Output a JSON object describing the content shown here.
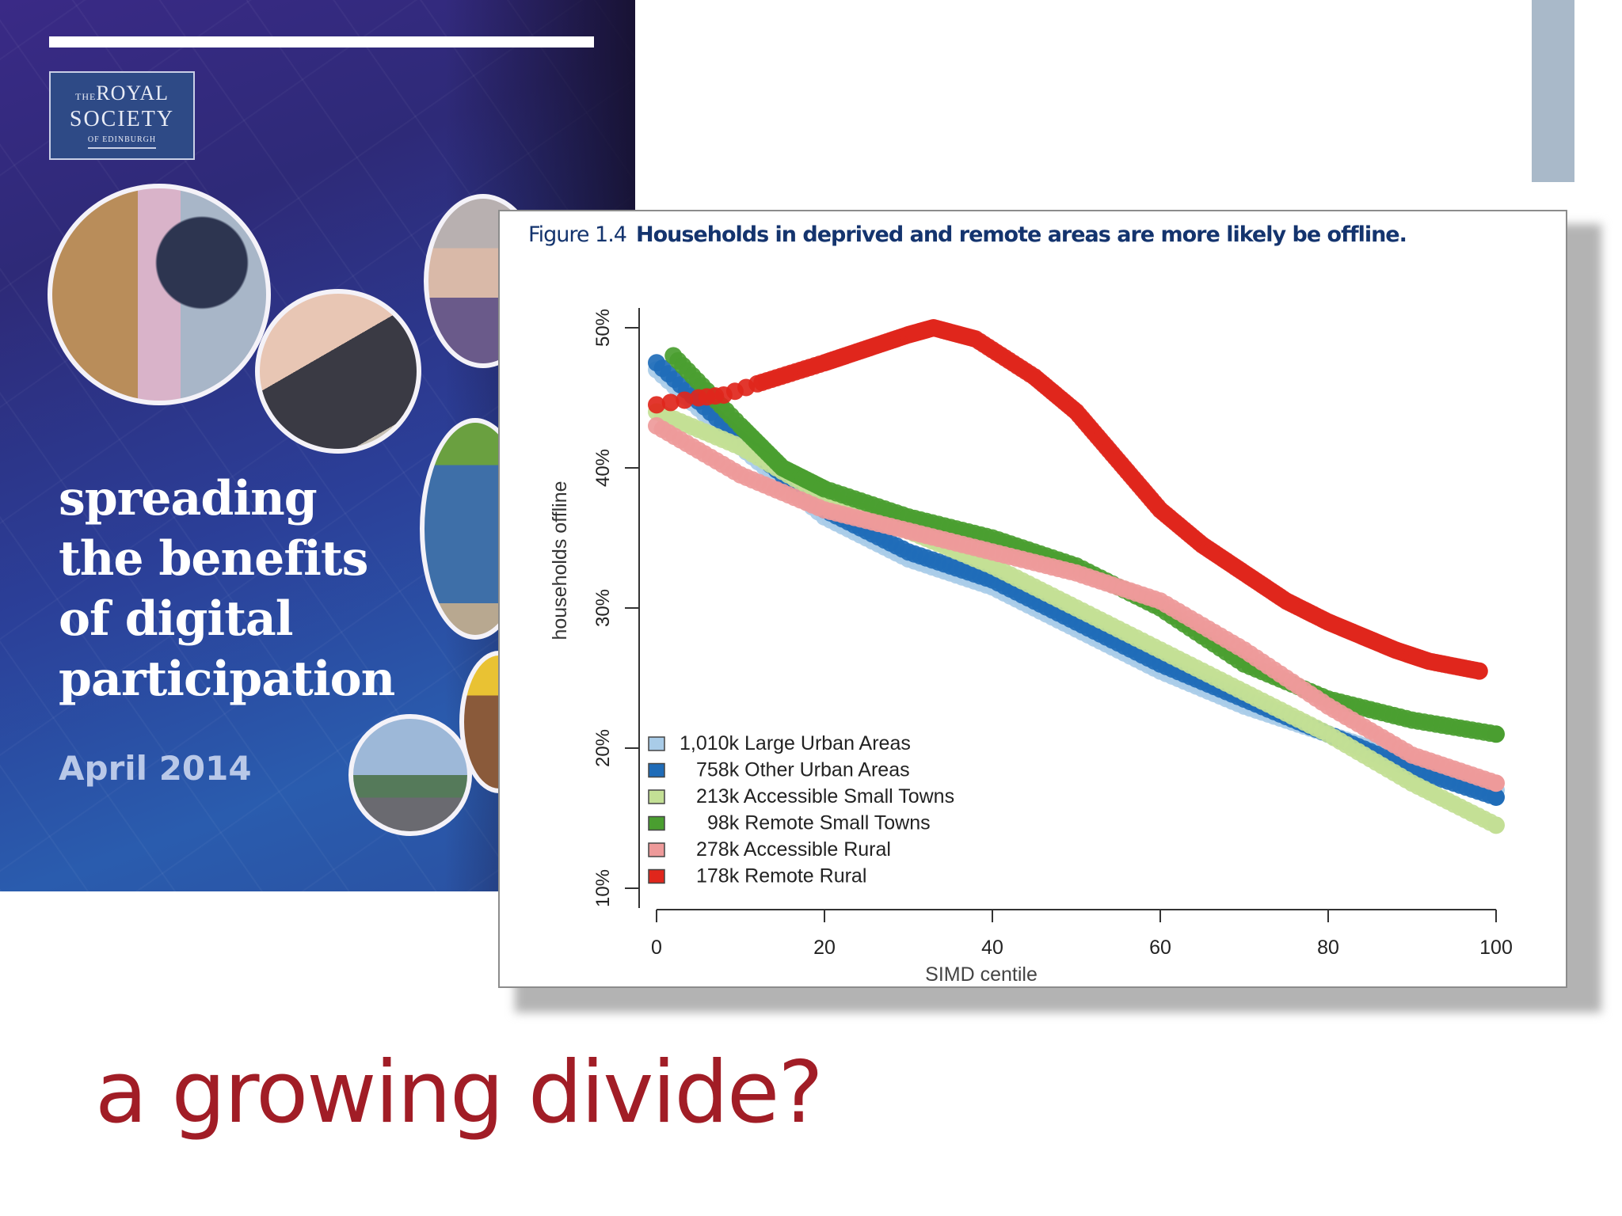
{
  "slide": {
    "accent_color": "#a9b9c9",
    "headline": "a growing divide?",
    "headline_color": "#a11d26"
  },
  "cover": {
    "logo": {
      "line1_small": "THE",
      "line1": "ROYAL",
      "line2": "SOCIETY",
      "line3": "OF EDINBURGH"
    },
    "title_lines": [
      "spreading",
      "the benefits",
      "of digital",
      "participation"
    ],
    "date": "April 2014"
  },
  "figure": {
    "number": "Figure 1.4",
    "caption": "Households in deprived and remote areas are more likely be offline."
  },
  "chart_data": {
    "type": "scatter",
    "title": "Households in deprived and remote areas are more likely be offline.",
    "xlabel": "SIMD centile",
    "ylabel": "households offline",
    "xlim": [
      0,
      100
    ],
    "ylim": [
      10,
      50
    ],
    "xticks": [
      "0",
      "20",
      "40",
      "60",
      "80",
      "100"
    ],
    "yticks": [
      "10%",
      "20%",
      "30%",
      "40%",
      "50%"
    ],
    "grid": false,
    "legend_position": "lower-left",
    "series": [
      {
        "name": "1,010k Large Urban Areas",
        "color": "#a9cce8",
        "x": [
          0,
          10,
          20,
          30,
          40,
          50,
          60,
          70,
          80,
          90,
          100
        ],
        "y": [
          47,
          41.5,
          36.5,
          33.5,
          31.5,
          28.5,
          25.5,
          23,
          21,
          19,
          17
        ]
      },
      {
        "name": "758k Other Urban Areas",
        "color": "#1f6cb8",
        "x": [
          0,
          10,
          20,
          30,
          40,
          50,
          60,
          70,
          80,
          90,
          100
        ],
        "y": [
          47.5,
          42,
          37,
          34,
          32,
          29,
          26,
          23.5,
          21,
          18.5,
          16.5
        ]
      },
      {
        "name": "213k Accessible Small Towns",
        "color": "#c3df95",
        "x": [
          0,
          10,
          20,
          30,
          40,
          50,
          60,
          70,
          80,
          90,
          100
        ],
        "y": [
          44,
          41.5,
          38,
          35.5,
          33,
          30,
          27,
          24,
          21,
          17.5,
          14.5
        ]
      },
      {
        "name": "98k Remote Small Towns",
        "color": "#4a9e30",
        "x": [
          2,
          10,
          15,
          20,
          30,
          40,
          50,
          60,
          70,
          80,
          90,
          100
        ],
        "y": [
          48,
          43,
          40,
          38.5,
          36.5,
          35,
          33,
          30,
          26,
          23.5,
          22,
          21
        ]
      },
      {
        "name": "278k Accessible Rural",
        "color": "#ee9a9a",
        "x": [
          0,
          10,
          20,
          30,
          40,
          50,
          60,
          70,
          80,
          90,
          100
        ],
        "y": [
          43,
          39.5,
          37,
          35.5,
          34,
          32.5,
          30.5,
          27,
          23,
          19.5,
          17.5
        ]
      },
      {
        "name": "178k Remote Rural",
        "color": "#e0261c",
        "x": [
          0,
          5,
          8,
          12,
          20,
          25,
          30,
          33,
          38,
          45,
          50,
          55,
          60,
          65,
          70,
          75,
          80,
          84,
          88,
          92,
          98
        ],
        "y": [
          44.5,
          45,
          45.2,
          46,
          47.5,
          48.5,
          49.5,
          50,
          49.2,
          46.5,
          44,
          40.5,
          37,
          34.5,
          32.5,
          30.5,
          29,
          28,
          27,
          26.2,
          25.5
        ]
      }
    ]
  }
}
